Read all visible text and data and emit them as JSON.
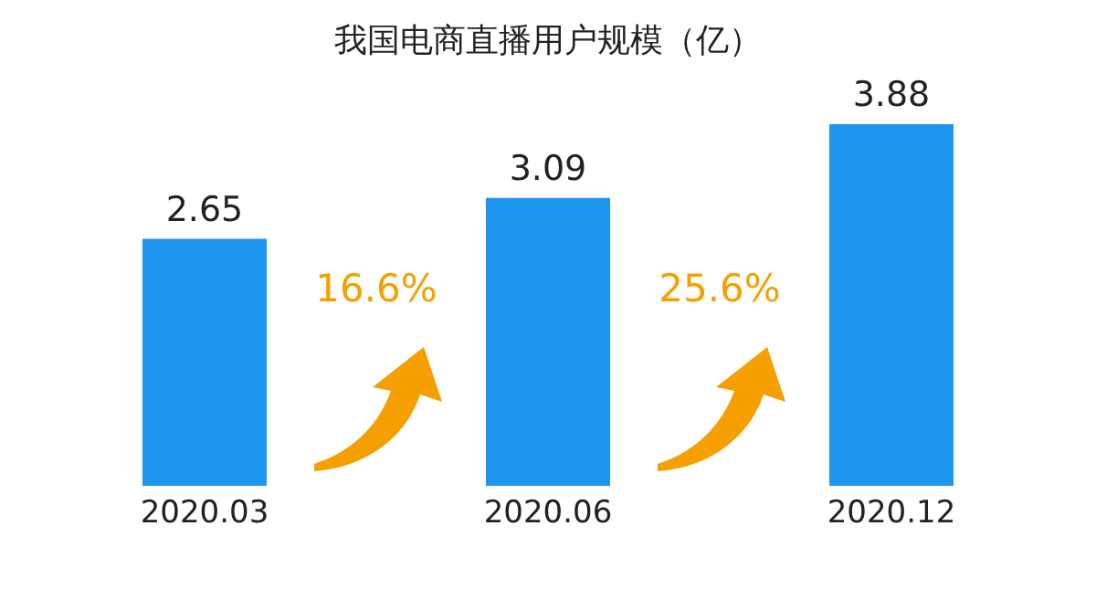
{
  "chart_data": {
    "type": "bar",
    "title": "我国电商直播用户规模（亿）",
    "categories": [
      "2020.03",
      "2020.06",
      "2020.12"
    ],
    "values": [
      2.65,
      3.09,
      3.88
    ],
    "color": "#1e96f0",
    "data_labels": true,
    "grid": false,
    "legend": false,
    "annotations": [
      "16.6%",
      "25.6%"
    ]
  }
}
